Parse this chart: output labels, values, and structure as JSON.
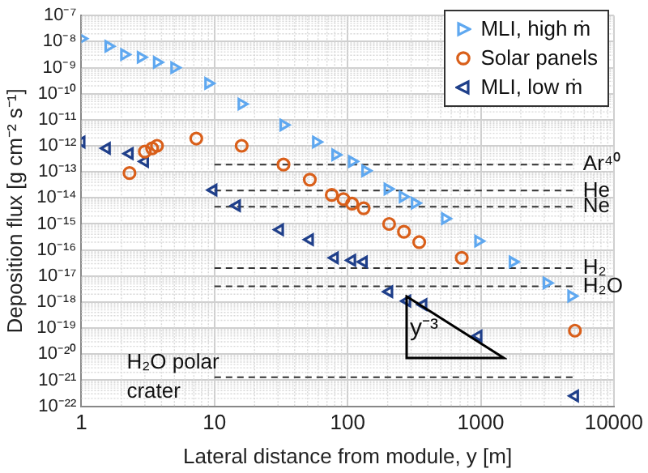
{
  "chart_data": {
    "type": "scatter",
    "xlabel": "Lateral distance from module, y [m]",
    "ylabel": "Deposition flux [g cm⁻² s⁻¹]",
    "log": "xy",
    "grid": true,
    "legend": "top right",
    "marker": "triangle",
    "xlim": [
      1,
      10000
    ],
    "xticks": [
      1,
      10,
      100,
      1000,
      10000
    ],
    "ylim": [
      1e-22,
      1e-07
    ],
    "yticks": [
      {
        "value": 1e-07,
        "label": "10⁻⁷"
      },
      {
        "value": 1e-08,
        "label": "10⁻⁸"
      },
      {
        "value": 1e-09,
        "label": "10⁻⁹"
      },
      {
        "value": 1e-10,
        "label": "10⁻¹⁰"
      },
      {
        "value": 1e-11,
        "label": "10⁻¹¹"
      },
      {
        "value": 1e-12,
        "label": "10⁻¹²"
      },
      {
        "value": 1e-13,
        "label": "10⁻¹³"
      },
      {
        "value": 1e-14,
        "label": "10⁻¹⁴"
      },
      {
        "value": 1e-15,
        "label": "10⁻¹⁵"
      },
      {
        "value": 1e-16,
        "label": "10⁻¹⁶"
      },
      {
        "value": 1e-17,
        "label": "10⁻¹⁷"
      },
      {
        "value": 1e-18,
        "label": "10⁻¹⁸"
      },
      {
        "value": 1e-19,
        "label": "10⁻¹⁹"
      },
      {
        "value": 1e-20,
        "label": "10⁻²⁰"
      },
      {
        "value": 1e-21,
        "label": "10⁻²¹"
      },
      {
        "value": 1e-22,
        "label": "10⁻²²"
      }
    ],
    "series": [
      {
        "name": "MLI, high ṁ",
        "color": "#5fa8f0",
        "x": [
          1,
          1.6,
          2.1,
          2.8,
          3.7,
          5,
          9,
          16,
          33,
          58,
          81,
          108,
          136,
          200,
          260,
          320,
          540,
          960,
          1740,
          3130,
          4800
        ],
        "values": [
          1.3e-08,
          6.6e-09,
          3.2e-09,
          2.5e-09,
          1.6e-09,
          1e-09,
          2.5e-10,
          4e-11,
          6.3e-12,
          1.4e-12,
          4.5e-13,
          2.5e-13,
          1.1e-13,
          2.2e-14,
          1.1e-14,
          6.3e-15,
          1.6e-15,
          2.2e-16,
          3.5e-17,
          5.4e-18,
          1.7e-18
        ]
      },
      {
        "name": "Solar panels",
        "color": "#d95f1a",
        "marker": "circle",
        "x": [
          2.3,
          3,
          3.4,
          3.7,
          7.3,
          16,
          33,
          52,
          76,
          93,
          108,
          132,
          205,
          265,
          345,
          720,
          5100
        ],
        "values": [
          9e-14,
          6e-13,
          8e-13,
          1e-12,
          1.9e-12,
          1e-12,
          1.9e-13,
          5e-14,
          1.3e-14,
          9e-15,
          6e-15,
          4e-15,
          1e-15,
          5e-16,
          2e-16,
          5e-17,
          8e-20
        ]
      },
      {
        "name": "MLI, low ṁ",
        "color": "#1f3f8a",
        "x": [
          1,
          1.55,
          2.3,
          3,
          9.8,
          14.7,
          31,
          52,
          80,
          108,
          132,
          205,
          280,
          370,
          960,
          5100
        ],
        "values": [
          1.4e-12,
          8e-13,
          5e-13,
          2.5e-13,
          2e-14,
          5e-15,
          6e-16,
          2.5e-16,
          5e-17,
          4e-17,
          3.5e-17,
          2.5e-18,
          1.1e-18,
          8e-19,
          5e-20,
          2.5e-22
        ]
      }
    ],
    "ref_lines": [
      {
        "axis": "y",
        "value": 1.9e-13,
        "label": "Ar⁴⁰",
        "line_style": "dashed",
        "color": "#333333"
      },
      {
        "axis": "y",
        "value": 1.9e-14,
        "label": "He",
        "line_style": "dashed",
        "color": "#333333"
      },
      {
        "axis": "y",
        "value": 4.6e-15,
        "label": "Ne",
        "line_style": "dashed",
        "color": "#333333"
      },
      {
        "axis": "y",
        "value": 2e-17,
        "label": "H₂",
        "line_style": "dashed",
        "color": "#333333"
      },
      {
        "axis": "y",
        "value": 4e-18,
        "label": "H₂O",
        "line_style": "dashed",
        "color": "#333333"
      },
      {
        "axis": "y",
        "value": 1.3e-21,
        "label": "H₂O polar crater",
        "line_style": "dashed",
        "color": "#333333"
      }
    ],
    "annotations": [
      "y⁻³"
    ]
  }
}
